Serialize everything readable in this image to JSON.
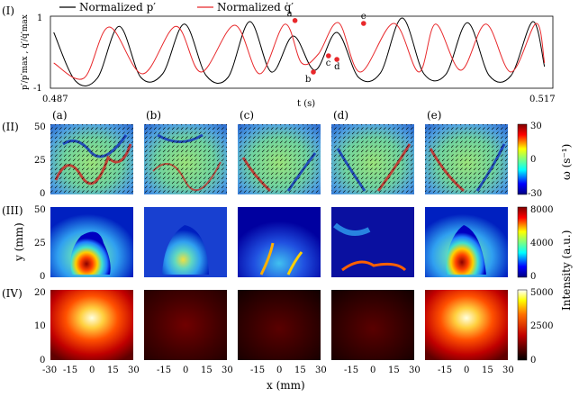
{
  "chart_data": [
    {
      "type": "line",
      "panel_label": "(I)",
      "xlabel": "t (s)",
      "ylabel": "p′/p′max , q̇′/q̇′max",
      "xlim": [
        0.487,
        0.517
      ],
      "ylim": [
        -1,
        1
      ],
      "x_ticks": [
        "0.487",
        "0.517"
      ],
      "y_ticks": [
        "-1",
        "1"
      ],
      "legend": {
        "placement": "top",
        "entries": [
          "Normalized p′",
          "Normalized q̇′"
        ]
      },
      "series": [
        {
          "name": "Normalized p′",
          "color": "#000000",
          "x": [
            0.4872,
            0.4885,
            0.4898,
            0.4911,
            0.4924,
            0.4937,
            0.495,
            0.4963,
            0.4976,
            0.4989,
            0.5002,
            0.5015,
            0.5028,
            0.5041,
            0.5054,
            0.5067,
            0.508,
            0.5093,
            0.5106,
            0.5119,
            0.5132,
            0.5145,
            0.5158,
            0.5165
          ],
          "y": [
            0.55,
            -0.8,
            -0.72,
            0.72,
            -0.7,
            -0.6,
            0.78,
            -0.65,
            -0.7,
            0.85,
            -0.55,
            0.45,
            -0.5,
            0.55,
            -0.7,
            -0.58,
            0.95,
            -0.6,
            -0.62,
            0.82,
            -0.65,
            -0.65,
            0.85,
            -0.4
          ]
        },
        {
          "name": "Normalized q̇′",
          "color": "#e8282b",
          "x": [
            0.4872,
            0.489,
            0.4905,
            0.4925,
            0.4945,
            0.496,
            0.498,
            0.4995,
            0.501,
            0.502,
            0.503,
            0.5042,
            0.5055,
            0.5075,
            0.509,
            0.51,
            0.5115,
            0.513,
            0.5145,
            0.516,
            0.5165
          ],
          "y": [
            -0.3,
            -0.72,
            0.7,
            -0.6,
            0.72,
            -0.55,
            0.75,
            -0.6,
            0.78,
            -0.3,
            -0.05,
            0.82,
            -0.55,
            0.8,
            -0.55,
            0.78,
            -0.5,
            0.78,
            -0.55,
            0.8,
            -0.3
          ]
        }
      ],
      "points": [
        {
          "label": "a",
          "x": 0.5016,
          "y": 0.88
        },
        {
          "label": "b",
          "x": 0.5027,
          "y": -0.55
        },
        {
          "label": "c",
          "x": 0.5036,
          "y": -0.1
        },
        {
          "label": "d",
          "x": 0.5041,
          "y": -0.2
        },
        {
          "label": "e",
          "x": 0.5057,
          "y": 0.8
        }
      ]
    },
    {
      "type": "heatmap",
      "panel_label": "(II)",
      "columns": [
        "(a)",
        "(b)",
        "(c)",
        "(d)",
        "(e)"
      ],
      "ylim": [
        0,
        50
      ],
      "y_ticks": [
        "0",
        "25",
        "50"
      ],
      "colorbar": {
        "label": "ω (s⁻¹)",
        "range": [
          -30,
          30
        ],
        "ticks": [
          "30",
          "0",
          "-30"
        ],
        "colormap": "jet"
      }
    },
    {
      "type": "heatmap",
      "panel_label": "(III)",
      "ylabel": "y (mm)",
      "ylim": [
        0,
        50
      ],
      "y_ticks": [
        "0",
        "25",
        "50"
      ],
      "colorbar": {
        "label": "Intensity (a.u.)",
        "range": [
          0,
          8000
        ],
        "ticks": [
          "8000",
          "4000",
          "0"
        ],
        "colormap": "jet"
      }
    },
    {
      "type": "heatmap",
      "panel_label": "(IV)",
      "xlabel": "x (mm)",
      "ylim": [
        0,
        20
      ],
      "y_ticks": [
        "0",
        "10",
        "20"
      ],
      "x_tick_labels": [
        "-30",
        "-15",
        "0",
        "15",
        "30"
      ],
      "colorbar": {
        "range": [
          0,
          5000
        ],
        "ticks": [
          "5000",
          "2500",
          "0"
        ],
        "colormap": "hot"
      }
    }
  ],
  "colors": {
    "pressure": "#000000",
    "heat_release": "#e8282b"
  }
}
